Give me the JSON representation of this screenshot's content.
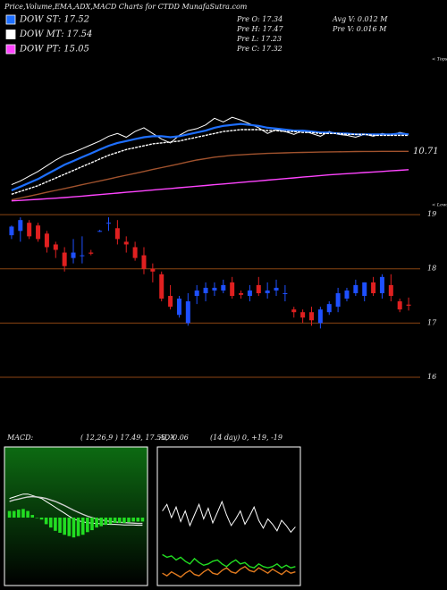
{
  "chart_data": [
    {
      "type": "line",
      "title": "Price,Volume,EMA,ADX,MACD Charts for CTDD MunafaSutra.com",
      "legend": "upper left",
      "annotations": [
        "< Tops"
      ],
      "ylim": [
        5,
        21
      ],
      "yticks": [
        10.71
      ],
      "grid": false,
      "series": [
        {
          "color": "#ffffff",
          "values": [
            7.2,
            7.6,
            8.1,
            8.6,
            9.2,
            9.8,
            10.3,
            10.6,
            11.0,
            11.4,
            11.8,
            12.3,
            12.6,
            12.2,
            12.8,
            13.2,
            12.6,
            12.0,
            11.6,
            12.4,
            12.9,
            13.1,
            13.5,
            14.2,
            13.8,
            14.3,
            14.0,
            13.6,
            13.2,
            12.6,
            13.0,
            12.8,
            12.5,
            12.9,
            12.6,
            12.3,
            12.8,
            12.5,
            12.4,
            12.2,
            12.5,
            12.3,
            12.6,
            12.4,
            12.7,
            12.5
          ]
        },
        {
          "name": "DOW ST: 17.52",
          "color": "#1e6fff",
          "values": [
            6.6,
            7.0,
            7.4,
            7.8,
            8.3,
            8.8,
            9.3,
            9.7,
            10.1,
            10.5,
            10.9,
            11.3,
            11.6,
            11.8,
            12.0,
            12.2,
            12.3,
            12.3,
            12.2,
            12.3,
            12.5,
            12.7,
            12.9,
            13.2,
            13.4,
            13.5,
            13.6,
            13.5,
            13.4,
            13.2,
            13.1,
            13.0,
            12.9,
            12.9,
            12.8,
            12.7,
            12.7,
            12.6,
            12.6,
            12.5,
            12.5,
            12.5,
            12.5,
            12.5,
            12.6,
            12.5
          ]
        },
        {
          "name": "DOW MT: 17.54",
          "color": "#ffffff",
          "values": [
            6.2,
            6.5,
            6.8,
            7.1,
            7.5,
            7.9,
            8.3,
            8.7,
            9.1,
            9.5,
            9.9,
            10.3,
            10.6,
            10.9,
            11.1,
            11.3,
            11.5,
            11.6,
            11.7,
            11.8,
            12.0,
            12.2,
            12.4,
            12.6,
            12.8,
            12.9,
            13.0,
            13.0,
            13.0,
            12.9,
            12.9,
            12.8,
            12.8,
            12.7,
            12.7,
            12.6,
            12.6,
            12.6,
            12.5,
            12.5,
            12.5,
            12.4,
            12.4,
            12.4,
            12.4,
            12.4
          ]
        },
        {
          "color": "#a0522d",
          "values": [
            5.6,
            5.8,
            6.0,
            6.2,
            6.4,
            6.6,
            6.8,
            7.0,
            7.2,
            7.4,
            7.6,
            7.8,
            8.0,
            8.2,
            8.4,
            8.6,
            8.8,
            9.0,
            9.2,
            9.4,
            9.6,
            9.8,
            9.95,
            10.1,
            10.2,
            10.3,
            10.35,
            10.4,
            10.45,
            10.5,
            10.52,
            10.55,
            10.58,
            10.6,
            10.62,
            10.64,
            10.66,
            10.67,
            10.68,
            10.69,
            10.7,
            10.7,
            10.71,
            10.71,
            10.71,
            10.71
          ]
        },
        {
          "name": "DOW PT: 15.05",
          "color": "#ff44ff",
          "values": [
            5.5,
            5.55,
            5.6,
            5.66,
            5.72,
            5.78,
            5.85,
            5.92,
            6.0,
            6.08,
            6.16,
            6.24,
            6.32,
            6.4,
            6.48,
            6.56,
            6.64,
            6.72,
            6.8,
            6.88,
            6.96,
            7.04,
            7.12,
            7.2,
            7.28,
            7.36,
            7.44,
            7.52,
            7.6,
            7.68,
            7.76,
            7.84,
            7.92,
            8.0,
            8.08,
            8.16,
            8.24,
            8.3,
            8.36,
            8.42,
            8.48,
            8.54,
            8.6,
            8.66,
            8.72,
            8.78
          ]
        }
      ]
    },
    {
      "type": "candlestick",
      "annotations": [
        "Pre O: 17.34",
        "Pre H: 17.47",
        "Pre L: 17.23",
        "Pre C: 17.32",
        "Avg V: 0.012 M",
        "Pre V: 0.016 M",
        "< Lows"
      ],
      "up_color": "#1e50ff",
      "down_color": "#e02020",
      "grid_color": "#8b4513",
      "ylim": [
        15.9,
        19.2
      ],
      "yticks": [
        19,
        18,
        17,
        16
      ],
      "grid": true,
      "open": [
        18.62,
        18.7,
        18.85,
        18.8,
        18.65,
        18.45,
        18.3,
        18.2,
        18.25,
        18.3,
        18.7,
        18.85,
        18.75,
        18.5,
        18.4,
        18.25,
        18.0,
        17.9,
        17.5,
        17.15,
        17.0,
        17.5,
        17.55,
        17.6,
        17.6,
        17.75,
        17.55,
        17.5,
        17.7,
        17.55,
        17.6,
        17.55,
        17.25,
        17.2,
        17.2,
        17.0,
        17.2,
        17.3,
        17.45,
        17.55,
        17.5,
        17.75,
        17.55,
        17.7,
        17.4,
        17.34
      ],
      "high": [
        18.8,
        18.95,
        18.9,
        18.85,
        18.7,
        18.5,
        18.4,
        18.55,
        18.6,
        18.35,
        18.72,
        18.95,
        18.9,
        18.6,
        18.5,
        18.4,
        18.1,
        17.95,
        17.7,
        17.5,
        17.55,
        17.7,
        17.75,
        17.75,
        17.8,
        17.85,
        17.6,
        17.7,
        17.85,
        17.75,
        17.8,
        17.7,
        17.3,
        17.25,
        17.3,
        17.3,
        17.4,
        17.65,
        17.65,
        17.8,
        17.75,
        17.85,
        17.9,
        17.9,
        17.45,
        17.47
      ],
      "low": [
        18.55,
        18.5,
        18.55,
        18.5,
        18.3,
        18.2,
        17.95,
        18.1,
        18.1,
        18.25,
        18.68,
        18.7,
        18.45,
        18.3,
        18.15,
        17.9,
        17.75,
        17.4,
        17.25,
        17.1,
        16.95,
        17.35,
        17.4,
        17.5,
        17.55,
        17.45,
        17.45,
        17.4,
        17.5,
        17.45,
        17.5,
        17.4,
        17.1,
        17.0,
        16.95,
        16.9,
        17.15,
        17.2,
        17.4,
        17.5,
        17.4,
        17.5,
        17.45,
        17.4,
        17.2,
        17.23
      ],
      "close": [
        18.78,
        18.9,
        18.6,
        18.55,
        18.4,
        18.35,
        18.05,
        18.3,
        18.25,
        18.28,
        18.7,
        18.85,
        18.55,
        18.45,
        18.2,
        18.0,
        17.95,
        17.45,
        17.3,
        17.45,
        17.4,
        17.6,
        17.65,
        17.65,
        17.7,
        17.5,
        17.52,
        17.6,
        17.55,
        17.6,
        17.65,
        17.55,
        17.2,
        17.1,
        17.05,
        17.25,
        17.35,
        17.55,
        17.6,
        17.7,
        17.75,
        17.55,
        17.85,
        17.5,
        17.25,
        17.32
      ]
    },
    {
      "type": "line",
      "title": "MACD:",
      "subtitle": "( 12,26,9 ) 17.49, 17.55, -0.06",
      "ylim": [
        15.5,
        20
      ],
      "y2lim": [
        -1,
        1
      ],
      "series": [
        {
          "color": "#ffffff",
          "values": [
            18.4,
            18.45,
            18.5,
            18.55,
            18.55,
            18.5,
            18.45,
            18.4,
            18.3,
            18.2,
            18.1,
            18.0,
            17.9,
            17.8,
            17.7,
            17.65,
            17.6,
            17.58,
            17.56,
            17.55,
            17.54,
            17.53,
            17.52,
            17.52,
            17.51,
            17.5,
            17.5,
            17.5,
            17.49,
            17.49
          ]
        },
        {
          "color": "#cfcfcf",
          "values": [
            18.3,
            18.35,
            18.38,
            18.42,
            18.45,
            18.46,
            18.45,
            18.43,
            18.4,
            18.35,
            18.3,
            18.23,
            18.16,
            18.08,
            18.0,
            17.93,
            17.86,
            17.8,
            17.75,
            17.7,
            17.67,
            17.64,
            17.62,
            17.6,
            17.59,
            17.58,
            17.57,
            17.56,
            17.55,
            17.55
          ]
        },
        {
          "type": "bar",
          "axis": "y2",
          "color": "#22dd22",
          "values": [
            0.1,
            0.1,
            0.12,
            0.13,
            0.1,
            0.04,
            0,
            -0.03,
            -0.1,
            -0.15,
            -0.2,
            -0.23,
            -0.26,
            -0.28,
            -0.3,
            -0.28,
            -0.26,
            -0.22,
            -0.19,
            -0.15,
            -0.13,
            -0.11,
            -0.1,
            -0.08,
            -0.08,
            -0.08,
            -0.07,
            -0.06,
            -0.06,
            -0.06
          ]
        }
      ]
    },
    {
      "type": "line",
      "title": "ADX",
      "subtitle": "(14 day) 0, +19, -19",
      "ylim": [
        0,
        100
      ],
      "series": [
        {
          "color": "#ffffff",
          "values": [
            55,
            60,
            50,
            58,
            47,
            55,
            44,
            52,
            60,
            49,
            57,
            46,
            54,
            62,
            52,
            44,
            49,
            55,
            45,
            51,
            58,
            48,
            42,
            49,
            45,
            40,
            48,
            44,
            39,
            43
          ]
        },
        {
          "color": "#22dd22",
          "values": [
            22,
            20,
            21,
            18,
            20,
            17,
            15,
            19,
            16,
            14,
            15,
            17,
            18,
            15,
            13,
            16,
            18,
            15,
            16,
            13,
            12,
            15,
            13,
            12,
            13,
            15,
            12,
            14,
            12,
            13
          ]
        },
        {
          "color": "#e07a1f",
          "values": [
            8,
            6,
            9,
            7,
            5,
            8,
            10,
            7,
            6,
            9,
            11,
            8,
            7,
            10,
            12,
            9,
            8,
            11,
            13,
            10,
            9,
            12,
            10,
            8,
            11,
            9,
            7,
            10,
            8,
            9
          ]
        }
      ]
    }
  ]
}
